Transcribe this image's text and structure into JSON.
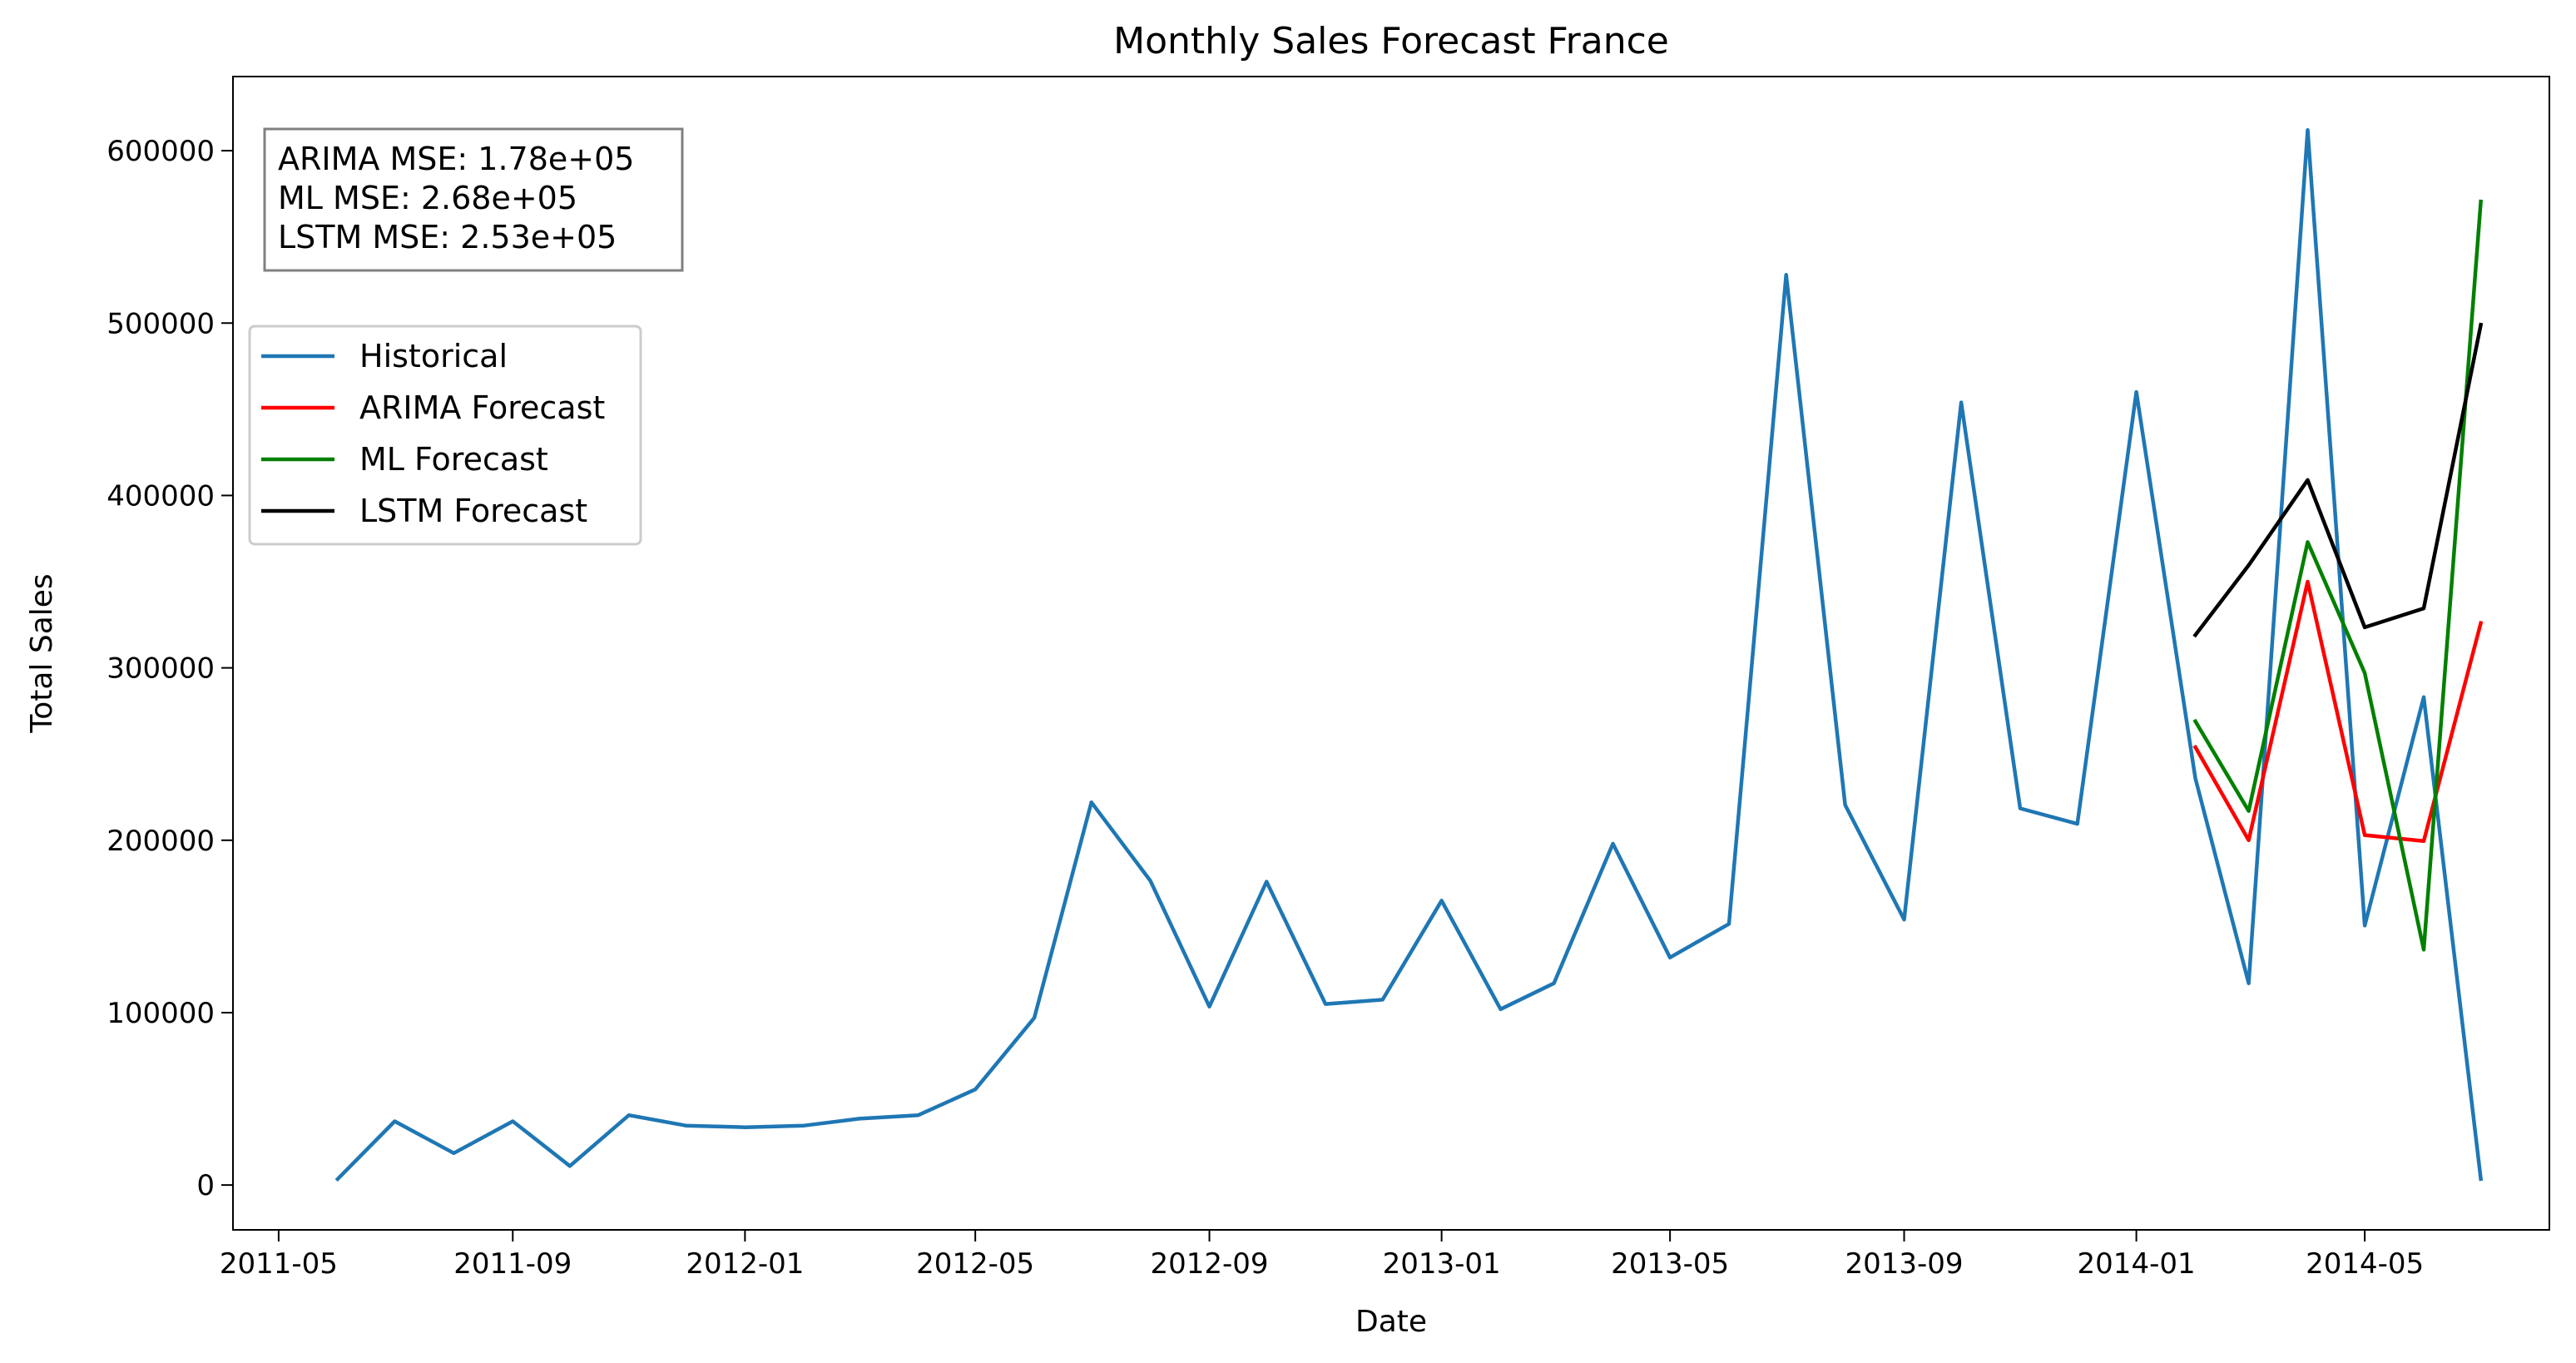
{
  "chart_data": {
    "type": "line",
    "title": "Monthly Sales Forecast France",
    "xlabel": "Date",
    "ylabel": "Total Sales",
    "xlim": [
      "2011-04-07",
      "2014-08-06"
    ],
    "ylim": [
      -26000,
      643000
    ],
    "grid": false,
    "legend_position": "center-left",
    "x_ticks": [
      "2011-05",
      "2011-09",
      "2012-01",
      "2012-05",
      "2012-09",
      "2013-01",
      "2013-05",
      "2013-09",
      "2014-01",
      "2014-05"
    ],
    "y_ticks": [
      0,
      100000,
      200000,
      300000,
      400000,
      500000,
      600000
    ],
    "stats_box": [
      "ARIMA MSE: 1.78e+05",
      "ML MSE: 2.68e+05",
      "LSTM MSE: 2.53e+05"
    ],
    "series": [
      {
        "name": "Historical",
        "color": "#1f77b4",
        "x": [
          "2011-06",
          "2011-07",
          "2011-08",
          "2011-09",
          "2011-10",
          "2011-11",
          "2011-12",
          "2012-01",
          "2012-02",
          "2012-03",
          "2012-04",
          "2012-05",
          "2012-06",
          "2012-07",
          "2012-08",
          "2012-09",
          "2012-10",
          "2012-11",
          "2012-12",
          "2013-01",
          "2013-02",
          "2013-03",
          "2013-04",
          "2013-05",
          "2013-06",
          "2013-07",
          "2013-08",
          "2013-09",
          "2013-10",
          "2013-11",
          "2013-12",
          "2014-01",
          "2014-02",
          "2014-03",
          "2014-04",
          "2014-05",
          "2014-06",
          "2014-07"
        ],
        "y": [
          3500,
          37000,
          18500,
          37000,
          11000,
          40500,
          34500,
          33500,
          34500,
          38500,
          40500,
          55500,
          97000,
          222000,
          176500,
          103500,
          176000,
          105000,
          107500,
          165000,
          102000,
          117000,
          198000,
          132000,
          151500,
          528000,
          220500,
          154000,
          454000,
          218500,
          209500,
          460000,
          236000,
          117000,
          612000,
          150500,
          283000,
          3500
        ]
      },
      {
        "name": "ARIMA Forecast",
        "color": "#ff0000",
        "x": [
          "2014-02",
          "2014-03",
          "2014-04",
          "2014-05",
          "2014-06",
          "2014-07"
        ],
        "y": [
          254000,
          200000,
          350000,
          203000,
          199500,
          326000
        ]
      },
      {
        "name": "ML Forecast",
        "color": "#008000",
        "x": [
          "2014-02",
          "2014-03",
          "2014-04",
          "2014-05",
          "2014-06",
          "2014-07"
        ],
        "y": [
          269000,
          217000,
          373000,
          297000,
          136500,
          570500
        ]
      },
      {
        "name": "LSTM Forecast",
        "color": "#000000",
        "x": [
          "2014-02",
          "2014-03",
          "2014-04",
          "2014-05",
          "2014-06",
          "2014-07"
        ],
        "y": [
          319000,
          359500,
          409000,
          323500,
          334500,
          499000
        ]
      }
    ]
  }
}
